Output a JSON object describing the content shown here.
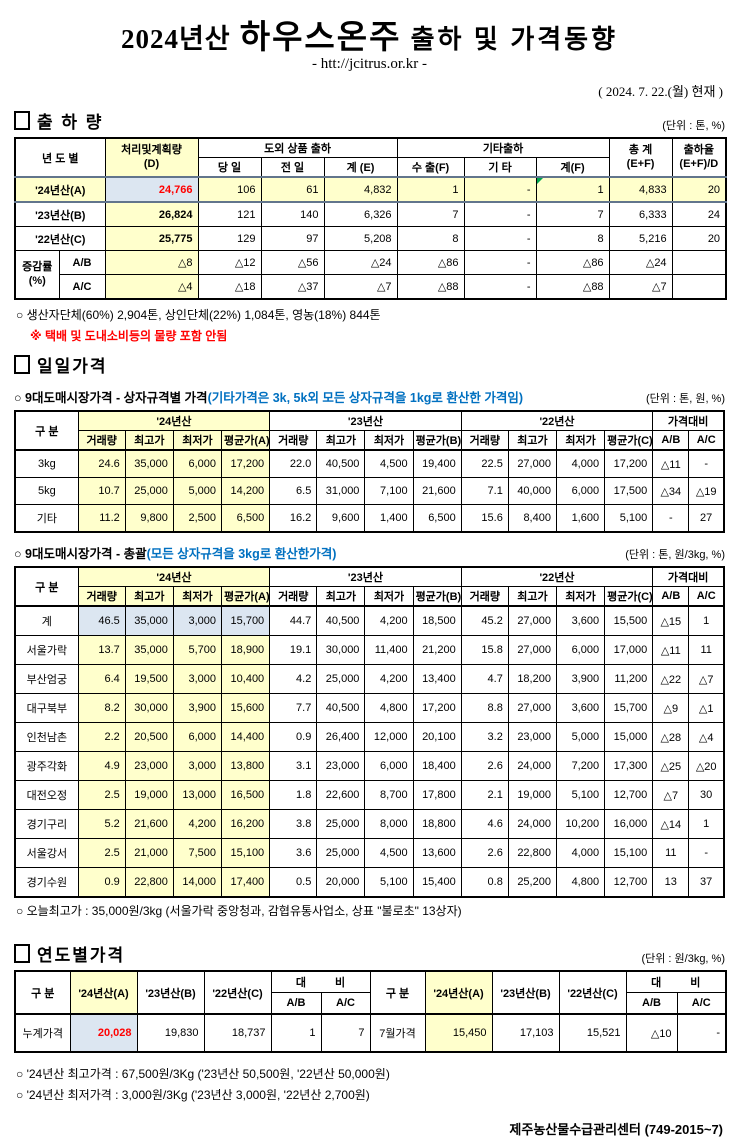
{
  "doc": {
    "title_prefix": "2024년산",
    "title_main": "하우스온주",
    "title_suffix": "출하 및 가격동향",
    "url": "- htt://jcitrus.or.kr -",
    "date": "( 2024. 7. 22.(월) 현재 )",
    "footer": "제주농산물수급관리센터 (749-2015~7)"
  },
  "shipment": {
    "heading": "출 하 량",
    "unit": "(단위 : 톤, %)",
    "h": {
      "year": "년 도 별",
      "d1": "처리및계획량",
      "d2": "(D)",
      "grp1": "도외 상품 출하",
      "grp2": "기타출하",
      "day": "당 일",
      "prev": "전 일",
      "sumE": "계 (E)",
      "exp": "수 출(F)",
      "etc": "기 타",
      "sumF": "계(F)",
      "tot1": "총   계",
      "tot2": "(E+F)",
      "rate1": "출하율",
      "rate2": "(E+F)/D"
    },
    "rows": {
      "a": [
        "'24년산(A)",
        "24,766",
        "106",
        "61",
        "4,832",
        "1",
        "-",
        "1",
        "4,833",
        "20"
      ],
      "b": [
        "'23년산(B)",
        "26,824",
        "121",
        "140",
        "6,326",
        "7",
        "-",
        "7",
        "6,333",
        "24"
      ],
      "c": [
        "'22년산(C)",
        "25,775",
        "129",
        "97",
        "5,208",
        "8",
        "-",
        "8",
        "5,216",
        "20"
      ]
    },
    "chg": {
      "label": "증감률",
      "pct": "(%)",
      "ab": [
        "A/B",
        "△8",
        "△12",
        "△56",
        "△24",
        "△86",
        "-",
        "△86",
        "△24",
        ""
      ],
      "ac": [
        "A/C",
        "△4",
        "△18",
        "△37",
        "△7",
        "△88",
        "-",
        "△88",
        "△7",
        ""
      ]
    },
    "note": "○ 생산자단체(60%) 2,904톤, 상인단체(22%) 1,084톤, 영농(18%) 844톤",
    "warn": "※ 택배 및 도내소비등의 물량 포함 안됨"
  },
  "daily": {
    "heading": "일일가격"
  },
  "ph": {
    "gubun": "구 분",
    "y24": "'24년산",
    "y23": "'23년산",
    "y22": "'22년산",
    "cmp": "가격대비",
    "vol": "거래량",
    "high": "최고가",
    "low": "최저가",
    "avgA": "평균가(A)",
    "avgB": "평균가(B)",
    "avgC": "평균가(C)",
    "ab": "A/B",
    "ac": "A/C"
  },
  "box_price": {
    "heading": "○ 9대도매시장가격 - 상자규격별 가격",
    "note_blue": "(기타가격은 3k, 5k외 모든 상자규격을 1kg로 환산한 가격임)",
    "unit": "(단위 : 톤,  원, %)",
    "rows": [
      [
        "3kg",
        "24.6",
        "35,000",
        "6,000",
        "17,200",
        "22.0",
        "40,500",
        "4,500",
        "19,400",
        "22.5",
        "27,000",
        "4,000",
        "17,200",
        "△11",
        "-"
      ],
      [
        "5kg",
        "10.7",
        "25,000",
        "5,000",
        "14,200",
        "6.5",
        "31,000",
        "7,100",
        "21,600",
        "7.1",
        "40,000",
        "6,000",
        "17,500",
        "△34",
        "△19"
      ],
      [
        "기타",
        "11.2",
        "9,800",
        "2,500",
        "6,500",
        "16.2",
        "9,600",
        "1,400",
        "6,500",
        "15.6",
        "8,400",
        "1,600",
        "5,100",
        "-",
        "27"
      ]
    ]
  },
  "wholesale_total": {
    "heading": "○ 9대도매시장가격 - 총괄",
    "note_blue": "(모든 상자규격을 3kg로 환산한가격)",
    "unit": "(단위 : 톤, 원/3kg, %)",
    "rows": [
      [
        "계",
        "46.5",
        "35,000",
        "3,000",
        "15,700",
        "44.7",
        "40,500",
        "4,200",
        "18,500",
        "45.2",
        "27,000",
        "3,600",
        "15,500",
        "△15",
        "1"
      ],
      [
        "서울가락",
        "13.7",
        "35,000",
        "5,700",
        "18,900",
        "19.1",
        "30,000",
        "11,400",
        "21,200",
        "15.8",
        "27,000",
        "6,000",
        "17,000",
        "△11",
        "11"
      ],
      [
        "부산엄궁",
        "6.4",
        "19,500",
        "3,000",
        "10,400",
        "4.2",
        "25,000",
        "4,200",
        "13,400",
        "4.7",
        "18,200",
        "3,900",
        "11,200",
        "△22",
        "△7"
      ],
      [
        "대구북부",
        "8.2",
        "30,000",
        "3,900",
        "15,600",
        "7.7",
        "40,500",
        "4,800",
        "17,200",
        "8.8",
        "27,000",
        "3,600",
        "15,700",
        "△9",
        "△1"
      ],
      [
        "인천남촌",
        "2.2",
        "20,500",
        "6,000",
        "14,400",
        "0.9",
        "26,400",
        "12,000",
        "20,100",
        "3.2",
        "23,000",
        "5,000",
        "15,000",
        "△28",
        "△4"
      ],
      [
        "광주각화",
        "4.9",
        "23,000",
        "3,000",
        "13,800",
        "3.1",
        "23,000",
        "6,000",
        "18,400",
        "2.6",
        "24,000",
        "7,200",
        "17,300",
        "△25",
        "△20"
      ],
      [
        "대전오정",
        "2.5",
        "19,000",
        "13,000",
        "16,500",
        "1.8",
        "22,600",
        "8,700",
        "17,800",
        "2.1",
        "19,000",
        "5,100",
        "12,700",
        "△7",
        "30"
      ],
      [
        "경기구리",
        "5.2",
        "21,600",
        "4,200",
        "16,200",
        "3.8",
        "25,000",
        "8,000",
        "18,800",
        "4.6",
        "24,000",
        "10,200",
        "16,000",
        "△14",
        "1"
      ],
      [
        "서울강서",
        "2.5",
        "21,000",
        "7,500",
        "15,100",
        "3.6",
        "25,000",
        "4,500",
        "13,600",
        "2.6",
        "22,800",
        "4,000",
        "15,100",
        "11",
        "-"
      ],
      [
        "경기수원",
        "0.9",
        "22,800",
        "14,000",
        "17,400",
        "0.5",
        "20,000",
        "5,100",
        "15,400",
        "0.8",
        "25,200",
        "4,800",
        "12,700",
        "13",
        "37"
      ]
    ],
    "today_note": "○ 오늘최고가 : 35,000원/3kg (서울가락  중앙청과,  감협유통사업소,  상표 \"불로초\"  13상자)"
  },
  "yearly": {
    "heading": "연도별가격",
    "unit": "(단위 : 원/3kg, %)",
    "h": {
      "gubun": "구  분",
      "a": "'24년산(A)",
      "b": "'23년산(B)",
      "c": "'22년산(C)",
      "daebi": "대 비",
      "ab": "A/B",
      "ac": "A/C"
    },
    "left": [
      "누계가격",
      "20,028",
      "19,830",
      "18,737",
      "1",
      "7"
    ],
    "right": [
      "7월가격",
      "15,450",
      "17,103",
      "15,521",
      "△10",
      "-"
    ]
  },
  "footnotes": {
    "high": "○ '24년산 최고가격 : 67,500원/3Kg ('23년산 50,500원, '22년산 50,000원)",
    "low": "○ '24년산 최저가격 :   3,000원/3Kg ('23년산   3,000원, '22년산  2,700원)"
  }
}
